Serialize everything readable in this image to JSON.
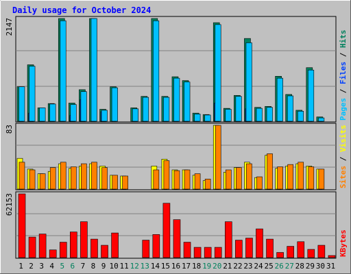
{
  "title": "Daily usage for October 2024",
  "colors": {
    "background": "#c0c0c0",
    "title": "#0000ff",
    "hits": "#00805c",
    "files": "#0040ff",
    "pages": "#00c0ff",
    "visits": "#ffff00",
    "sites": "#ff8000",
    "kbytes": "#ff0000"
  },
  "chart_data": [
    {
      "type": "bar",
      "title": "Daily usage for October 2024",
      "categories": [
        "1",
        "2",
        "3",
        "4",
        "5",
        "6",
        "7",
        "8",
        "9",
        "10",
        "11",
        "12",
        "13",
        "14",
        "15",
        "16",
        "17",
        "18",
        "19",
        "20",
        "21",
        "22",
        "23",
        "24",
        "25",
        "26",
        "27",
        "28",
        "29",
        "30",
        "31"
      ],
      "weekend_days": [
        "5",
        "6",
        "12",
        "13",
        "19",
        "20",
        "26",
        "27"
      ],
      "ylabel_parts": [
        "Pages",
        "Files",
        "Hits"
      ],
      "ymax_label": "2147",
      "ylim": [
        0,
        2147
      ],
      "series": [
        {
          "name": "Hits",
          "values": [
            720,
            1180,
            280,
            370,
            2147,
            380,
            660,
            2147,
            250,
            720,
            0,
            280,
            520,
            2147,
            520,
            930,
            850,
            170,
            140,
            2060,
            270,
            540,
            1730,
            290,
            310,
            940,
            560,
            230,
            1120,
            90,
            0
          ]
        },
        {
          "name": "Files",
          "values": [
            0,
            170,
            0,
            0,
            0,
            120,
            450,
            0,
            200,
            0,
            0,
            0,
            0,
            0,
            0,
            0,
            0,
            0,
            0,
            380,
            0,
            0,
            260,
            0,
            0,
            0,
            0,
            0,
            0,
            0,
            0
          ]
        },
        {
          "name": "Pages",
          "values": [
            720,
            1150,
            280,
            360,
            2100,
            350,
            620,
            2147,
            230,
            700,
            0,
            260,
            500,
            2100,
            500,
            900,
            820,
            150,
            130,
            2020,
            250,
            520,
            1640,
            270,
            290,
            900,
            530,
            210,
            1070,
            70,
            0
          ]
        }
      ]
    },
    {
      "type": "bar",
      "categories": [
        "1",
        "2",
        "3",
        "4",
        "5",
        "6",
        "7",
        "8",
        "9",
        "10",
        "11",
        "12",
        "13",
        "14",
        "15",
        "16",
        "17",
        "18",
        "19",
        "20",
        "21",
        "22",
        "23",
        "24",
        "25",
        "26",
        "27",
        "28",
        "29",
        "30",
        "31"
      ],
      "ylabel_parts": [
        "Sites",
        "Visits"
      ],
      "ymax_label": "83",
      "ylim": [
        0,
        83
      ],
      "series": [
        {
          "name": "Visits",
          "values": [
            40,
            26,
            20,
            23,
            33,
            27,
            30,
            33,
            30,
            18,
            17,
            0,
            0,
            30,
            39,
            25,
            25,
            18,
            11,
            83,
            22,
            28,
            35,
            15,
            44,
            27,
            30,
            33,
            30,
            26,
            0
          ]
        },
        {
          "name": "Sites",
          "values": [
            35,
            25,
            20,
            28,
            35,
            29,
            33,
            35,
            28,
            18,
            17,
            0,
            0,
            25,
            37,
            24,
            25,
            20,
            13,
            83,
            25,
            28,
            33,
            16,
            46,
            29,
            32,
            35,
            29,
            26,
            0
          ]
        }
      ]
    },
    {
      "type": "bar",
      "categories": [
        "1",
        "2",
        "3",
        "4",
        "5",
        "6",
        "7",
        "8",
        "9",
        "10",
        "11",
        "12",
        "13",
        "14",
        "15",
        "16",
        "17",
        "18",
        "19",
        "20",
        "21",
        "22",
        "23",
        "24",
        "25",
        "26",
        "27",
        "28",
        "29",
        "30",
        "31"
      ],
      "ylabel_parts": [
        "KBytes"
      ],
      "ymax_label": "62153",
      "ylim": [
        0,
        62153
      ],
      "series": [
        {
          "name": "KBytes",
          "values": [
            62153,
            20000,
            23000,
            7500,
            15000,
            25000,
            35000,
            18000,
            12000,
            24000,
            0,
            0,
            17000,
            22500,
            53000,
            37000,
            15000,
            10000,
            10000,
            10000,
            35000,
            17000,
            19000,
            28000,
            18000,
            5000,
            11000,
            15500,
            8000,
            12000,
            2000
          ]
        }
      ]
    }
  ]
}
